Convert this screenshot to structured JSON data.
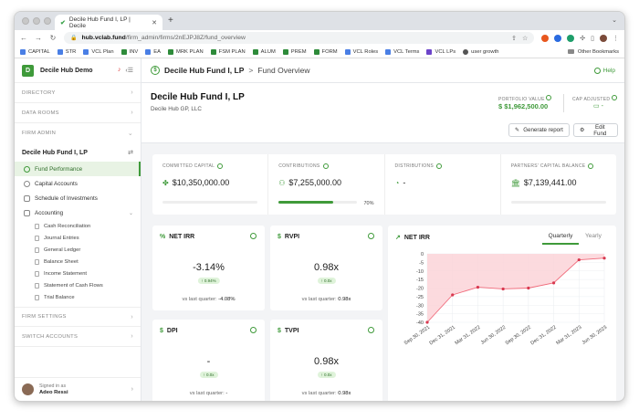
{
  "browser": {
    "tab_title": "Decile Hub Fund I, LP | Decile",
    "url_host": "hub.vclab.fund",
    "url_path": "/firm_admin/firms/2nEJPJ8Z/fund_overview",
    "bookmarks": [
      {
        "label": "CAPITAL",
        "color": "#4a7fe5"
      },
      {
        "label": "STR",
        "color": "#4a7fe5"
      },
      {
        "label": "VCL Plan",
        "color": "#4a7fe5"
      },
      {
        "label": "INV",
        "color": "#2e8b3a"
      },
      {
        "label": "EA",
        "color": "#4a7fe5"
      },
      {
        "label": "MRK PLAN",
        "color": "#2e8b3a"
      },
      {
        "label": "FSM PLAN",
        "color": "#2e8b3a"
      },
      {
        "label": "ALUM",
        "color": "#2e8b3a"
      },
      {
        "label": "PREM",
        "color": "#2e8b3a"
      },
      {
        "label": "FORM",
        "color": "#2e8b3a"
      },
      {
        "label": "VCL Roles",
        "color": "#4a7fe5"
      },
      {
        "label": "VCL Terms",
        "color": "#4a7fe5"
      },
      {
        "label": "VCL LPs",
        "color": "#6c44c9"
      },
      {
        "label": "user growth",
        "color": "#555555"
      }
    ],
    "other_bookmarks": "Other Bookmarks"
  },
  "sidebar": {
    "logo_letter": "D",
    "org_name": "Decile Hub Demo",
    "sections": {
      "directory": "DIRECTORY",
      "data_rooms": "DATA ROOMS",
      "firm_admin": "FIRM ADMIN",
      "firm_settings": "FIRM SETTINGS",
      "switch_accounts": "SWITCH ACCOUNTS"
    },
    "fund_name": "Decile Hub Fund I, LP",
    "items": {
      "fund_performance": "Fund Performance",
      "capital_accounts": "Capital Accounts",
      "schedule": "Schedule of Investments",
      "accounting": "Accounting"
    },
    "accounting_sub": [
      "Cash Reconciliation",
      "Journal Entries",
      "General Ledger",
      "Balance Sheet",
      "Income Statement",
      "Statement of Cash Flows",
      "Trial Balance"
    ],
    "footer": {
      "signed_in": "Signed in as",
      "user": "Adeo Ressi"
    }
  },
  "topbar": {
    "fund": "Decile Hub Fund I, LP",
    "separator": ">",
    "page": "Fund Overview",
    "help": "Help"
  },
  "fund_header": {
    "title": "Decile Hub Fund I, LP",
    "subtitle": "Decile Hub GP, LLC",
    "portfolio_value_label": "PORTFOLIO VALUE",
    "portfolio_value": "$1,962,500.00",
    "cap_adjusted_label": "CAP ADJUSTED",
    "cap_adjusted_value": "-",
    "generate_report": "Generate report",
    "edit_fund": "Edit Fund"
  },
  "stats": {
    "committed": {
      "label": "COMMITTED CAPITAL",
      "value": "$10,350,000.00"
    },
    "contributions": {
      "label": "CONTRIBUTIONS",
      "value": "$7,255,000.00",
      "percent_text": "70%",
      "percent": 70
    },
    "distributions": {
      "label": "DISTRIBUTIONS",
      "value": "-"
    },
    "balance": {
      "label": "PARTNERS' CAPITAL BALANCE",
      "value": "$7,139,441.00"
    }
  },
  "metrics": {
    "net_irr": {
      "title": "NET IRR",
      "value": "-3.14%",
      "delta": "↑ 0.94%",
      "foot_label": "vs last quarter:",
      "foot_value": "-4.08%"
    },
    "rvpi": {
      "title": "RVPI",
      "value": "0.98x",
      "delta": "↑ 0.0x",
      "foot_label": "vs last quarter:",
      "foot_value": "0.98x"
    },
    "dpi": {
      "title": "DPI",
      "value": "-",
      "delta": "↑ 0.0x",
      "foot_label": "vs last quarter:",
      "foot_value": "-"
    },
    "tvpi": {
      "title": "TVPI",
      "value": "0.98x",
      "delta": "↑ 0.0x",
      "foot_label": "vs last quarter:",
      "foot_value": "0.98x"
    }
  },
  "chart_card": {
    "title": "NET IRR",
    "tabs": {
      "quarterly": "Quarterly",
      "yearly": "Yearly"
    }
  },
  "chart_data": {
    "type": "area",
    "title": "NET IRR",
    "categories": [
      "Sep 30, 2021",
      "Dec 31, 2021",
      "Mar 31, 2022",
      "Jun 30, 2022",
      "Sep 30, 2022",
      "Dec 31, 2022",
      "Mar 31, 2023",
      "Jun 30, 2023"
    ],
    "series": [
      {
        "values": [
          -40,
          -24,
          -19.5,
          -20.5,
          -20,
          -17,
          -3.5,
          -2.5
        ]
      }
    ],
    "ylim": [
      -40,
      0
    ],
    "yticks": [
      0,
      -5,
      -10,
      -15,
      -20,
      -25,
      -30,
      -35,
      -40
    ],
    "grid": true,
    "color": "#f06a7a",
    "fill": "#fbd3d8"
  }
}
